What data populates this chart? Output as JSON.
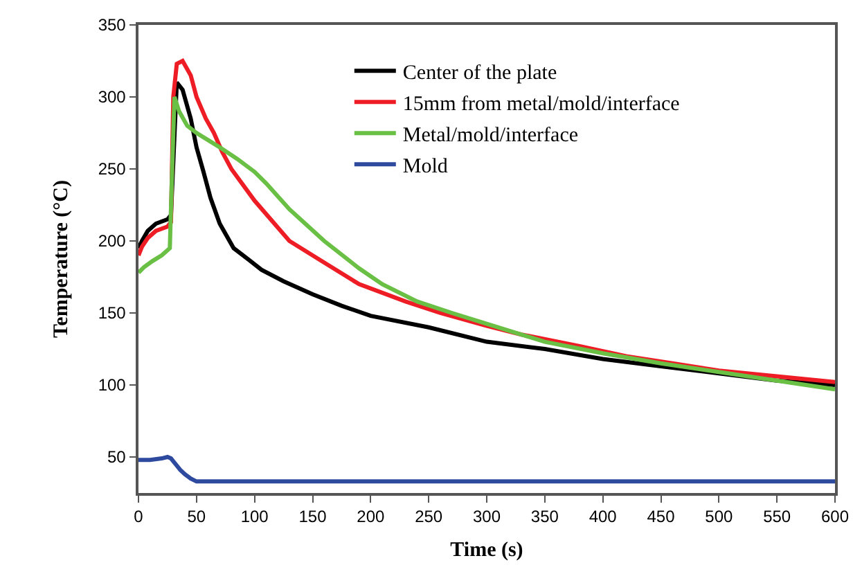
{
  "chart_data": {
    "type": "line",
    "xlabel": "Time (s)",
    "ylabel": "Temperature (°C)",
    "xlim": [
      0,
      600
    ],
    "ylim": [
      25,
      350
    ],
    "xticks": [
      0,
      50,
      100,
      150,
      200,
      250,
      300,
      350,
      400,
      450,
      500,
      550,
      600
    ],
    "yticks": [
      50,
      100,
      150,
      200,
      250,
      300,
      350
    ],
    "grid": false,
    "legend": "top right",
    "marker": "none",
    "line_style": "solid",
    "series": [
      {
        "name": "Center of the plate",
        "color": "#000000",
        "x": [
          0,
          3,
          8,
          15,
          25,
          28,
          33,
          38,
          45,
          50,
          56,
          62,
          70,
          82,
          95,
          106,
          125,
          150,
          175,
          200,
          250,
          300,
          350,
          400,
          450,
          500,
          550,
          600
        ],
        "values": [
          195,
          200,
          207,
          212,
          215,
          218,
          310,
          305,
          285,
          265,
          248,
          230,
          212,
          195,
          187,
          180,
          172,
          163,
          155,
          148,
          140,
          130,
          125,
          118,
          113,
          108,
          103,
          100
        ]
      },
      {
        "name": "15mm from metal/mold/interface",
        "color": "#ee1c25",
        "x": [
          0,
          3,
          8,
          15,
          25,
          28,
          30,
          33,
          38,
          45,
          50,
          58,
          65,
          72,
          80,
          100,
          130,
          160,
          190,
          230,
          260,
          300,
          330,
          380,
          420,
          460,
          500,
          550,
          600
        ],
        "values": [
          190,
          196,
          202,
          207,
          210,
          213,
          300,
          323,
          325,
          315,
          300,
          285,
          275,
          262,
          250,
          228,
          200,
          185,
          170,
          158,
          150,
          141,
          135,
          127,
          120,
          115,
          110,
          106,
          102
        ]
      },
      {
        "name": "Metal/mold/interface",
        "color": "#6abf45",
        "x": [
          0,
          5,
          12,
          20,
          27,
          29,
          31,
          35,
          42,
          50,
          60,
          70,
          85,
          100,
          110,
          130,
          160,
          190,
          210,
          240,
          270,
          310,
          350,
          400,
          450,
          500,
          550,
          600
        ],
        "values": [
          178,
          182,
          186,
          190,
          195,
          250,
          300,
          290,
          280,
          275,
          270,
          265,
          257,
          248,
          240,
          222,
          200,
          181,
          170,
          158,
          150,
          140,
          130,
          122,
          115,
          109,
          103,
          97
        ]
      },
      {
        "name": "Mold",
        "color": "#2e4a9e",
        "x": [
          0,
          10,
          20,
          25,
          28,
          32,
          36,
          40,
          45,
          50,
          60,
          100,
          200,
          300,
          400,
          500,
          600
        ],
        "values": [
          48,
          48,
          49,
          50,
          49,
          45,
          41,
          38,
          35,
          33,
          33,
          33,
          33,
          33,
          33,
          33,
          33
        ]
      }
    ]
  }
}
